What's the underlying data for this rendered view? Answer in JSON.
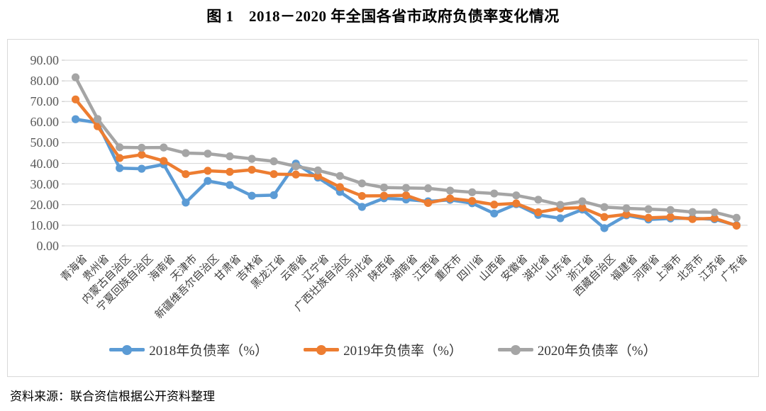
{
  "title": "图 1　2018－2020 年全国各省市政府负债率变化情况",
  "source_note": "资料来源：联合资信根据公开资料整理",
  "chart_data": {
    "type": "line",
    "title": "图 1　2018－2020 年全国各省市政府负债率变化情况",
    "categories": [
      "青海省",
      "贵州省",
      "内蒙古自治区",
      "宁夏回族自治区",
      "海南省",
      "天津市",
      "新疆维吾尔自治区",
      "甘肃省",
      "吉林省",
      "黑龙江省",
      "云南省",
      "辽宁省",
      "广西壮族自治区",
      "河北省",
      "陕西省",
      "湖南省",
      "江西省",
      "重庆市",
      "四川省",
      "山西省",
      "安徽省",
      "湖北省",
      "山东省",
      "浙江省",
      "西藏自治区",
      "福建省",
      "河南省",
      "上海市",
      "北京市",
      "江苏省",
      "广东省"
    ],
    "series": [
      {
        "name": "2018年负债率（%）",
        "color": "#5B9BD5",
        "values": [
          61.4,
          59.7,
          37.7,
          37.4,
          39.5,
          21.0,
          31.5,
          29.5,
          24.3,
          24.6,
          39.9,
          33.1,
          26.2,
          18.9,
          23.1,
          22.5,
          21.6,
          22.3,
          20.7,
          15.7,
          20.2,
          15.0,
          13.4,
          17.6,
          8.6,
          14.8,
          12.8,
          13.3,
          13.4,
          12.9,
          10.0
        ]
      },
      {
        "name": "2019年负债率（%）",
        "color": "#ED7D31",
        "values": [
          71.0,
          58.0,
          42.6,
          44.2,
          41.2,
          34.8,
          36.4,
          35.9,
          36.9,
          34.8,
          34.6,
          33.9,
          28.5,
          24.2,
          24.3,
          24.5,
          20.8,
          23.0,
          21.8,
          20.0,
          20.6,
          16.3,
          18.2,
          18.5,
          14.0,
          15.3,
          13.6,
          14.0,
          13.0,
          13.4,
          9.8
        ]
      },
      {
        "name": "2020年负债率（%）",
        "color": "#A5A5A5",
        "values": [
          81.7,
          61.5,
          47.8,
          47.6,
          47.7,
          45.0,
          44.7,
          43.4,
          42.2,
          41.0,
          38.6,
          36.6,
          33.9,
          30.3,
          28.3,
          28.1,
          27.9,
          26.8,
          26.0,
          25.4,
          24.5,
          22.4,
          19.9,
          21.6,
          18.8,
          18.2,
          17.8,
          17.4,
          16.4,
          16.3,
          13.6
        ]
      }
    ],
    "ylim": [
      0,
      90
    ],
    "y_ticks": [
      "90.00",
      "80.00",
      "70.00",
      "60.00",
      "50.00",
      "40.00",
      "30.00",
      "20.00",
      "10.00",
      "0.00"
    ],
    "xlabel": "",
    "ylabel": "",
    "grid": true,
    "grid_color": "#d9d9d9",
    "legend_position": "bottom",
    "marker": "circle"
  }
}
